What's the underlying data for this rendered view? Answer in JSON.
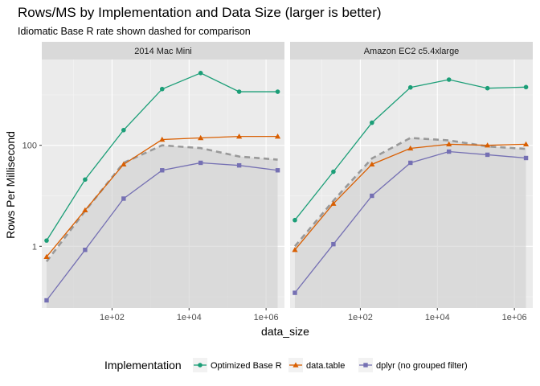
{
  "chart_data": {
    "type": "line",
    "title": "Rows/MS by Implementation and Data Size (larger is better)",
    "subtitle": "Idiomatic Base R rate shown dashed for comparison",
    "xlabel": "data_size",
    "ylabel": "Rows Per Millisecond",
    "x_scale": "log10",
    "y_scale": "log10",
    "xlim": [
      1.5,
      3000000
    ],
    "ylim": [
      0.06,
      5000
    ],
    "x_ticks": [
      100,
      10000,
      1000000
    ],
    "x_tick_labels": [
      "1e+02",
      "1e+04",
      "1e+06"
    ],
    "y_ticks": [
      1,
      100
    ],
    "y_tick_labels": [
      "1",
      "100"
    ],
    "grid": true,
    "legend": {
      "title": "Implementation",
      "position": "bottom"
    },
    "x": [
      2,
      20,
      200,
      2000,
      20000,
      200000,
      2000000
    ],
    "facets": [
      {
        "label": "2014 Mac Mini",
        "series": [
          {
            "name": "Optimized Base R",
            "color": "#1b9e77",
            "marker": "circle",
            "values": [
              1.3,
              21,
              200,
              1300,
              2700,
              1150,
              1150
            ]
          },
          {
            "name": "data.table",
            "color": "#d95f02",
            "marker": "triangle",
            "values": [
              0.62,
              5.2,
              42,
              130,
              140,
              150,
              150
            ]
          },
          {
            "name": "dplyr (no grouped filter)",
            "color": "#7570b3",
            "marker": "square",
            "values": [
              0.085,
              0.85,
              8.8,
              32,
              45,
              40,
              32
            ]
          }
        ],
        "reference": {
          "color": "#999999",
          "values": [
            0.5,
            5,
            45,
            100,
            88,
            60,
            52
          ]
        }
      },
      {
        "label": "Amazon EC2 c5.4xlarge",
        "series": [
          {
            "name": "Optimized Base R",
            "color": "#1b9e77",
            "marker": "circle",
            "values": [
              3.3,
              30,
              280,
              1400,
              2000,
              1350,
              1420
            ]
          },
          {
            "name": "data.table",
            "color": "#d95f02",
            "marker": "triangle",
            "values": [
              0.85,
              7,
              42,
              87,
              105,
              100,
              105
            ]
          },
          {
            "name": "dplyr (no grouped filter)",
            "color": "#7570b3",
            "marker": "square",
            "values": [
              0.12,
              1.1,
              10,
              45,
              75,
              65,
              56
            ]
          }
        ],
        "reference": {
          "color": "#999999",
          "values": [
            1,
            8,
            55,
            140,
            125,
            95,
            85
          ]
        }
      }
    ]
  }
}
